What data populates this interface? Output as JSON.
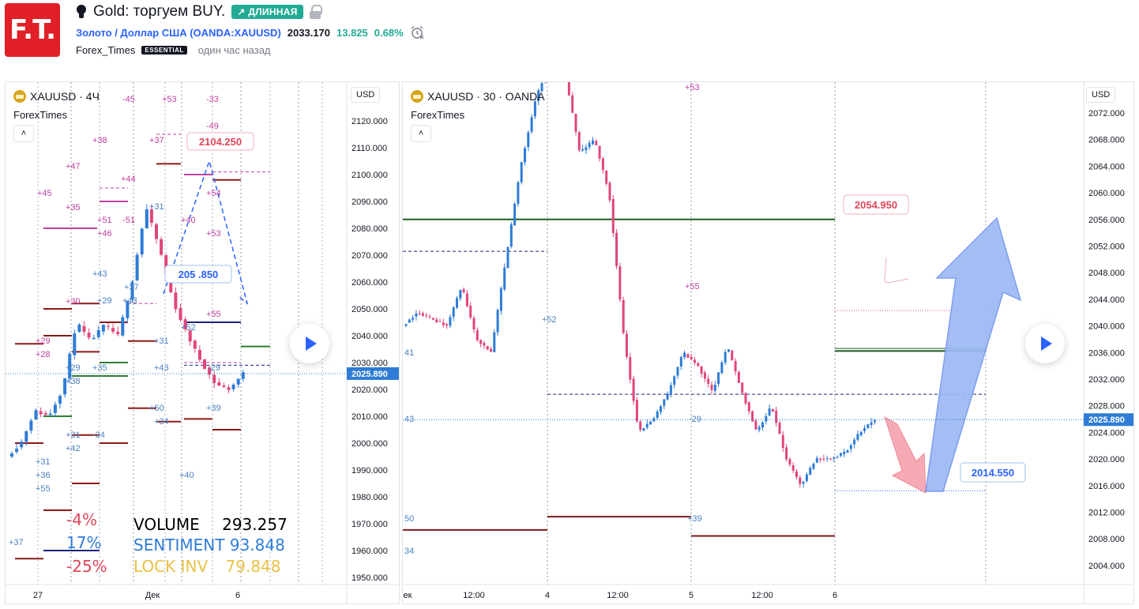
{
  "header": {
    "logo_text": "F.T.",
    "idea_title": "Gold: торгуем BUY.",
    "direction_badge": "↗ ДЛИННАЯ",
    "symbol_link": "Золото / Доллар США (OANDA:XAUUSD)",
    "price": "2033.170",
    "change": "13.825",
    "change_pct": "0.68%",
    "author": "Forex_Times",
    "author_badge": "ESSENTIAL",
    "time_ago": "один час назад"
  },
  "colors": {
    "bull": "#2e7cd6",
    "bear": "#e0457b",
    "accent": "#2962ff",
    "green_badge": "#22ab94",
    "logo_red": "#e01f26"
  },
  "left_chart": {
    "title": "XAUUSD · 4Ч",
    "indicator": "ForexTimes",
    "collapse": "˄",
    "currency": "USD",
    "y_ticks": [
      "2120.000",
      "2110.000",
      "2100.000",
      "2090.000",
      "2080.000",
      "2070.000",
      "2060.000",
      "2050.000",
      "2040.000",
      "2030.000",
      "2020.000",
      "2010.000",
      "2000.000",
      "1990.000",
      "1980.000",
      "1970.000",
      "1960.000",
      "1950.000"
    ],
    "x_ticks": [
      "27",
      "Дек",
      "6"
    ],
    "last_price": "2025.890",
    "callout_red": "2104.250",
    "callout_blue": "205 .850",
    "volume_label": "VOLUME",
    "volume_value": "293.257",
    "sentiment_label": "SENTIMENT",
    "sentiment_value": "93.848",
    "lock_label": "LOCK INV",
    "lock_value": "79.848",
    "pct_red_1": "-4%",
    "pct_blue": "17%",
    "pct_red_2": "-25%",
    "labels_pink": [
      "+47",
      "+45",
      "+35",
      "+38",
      "+37",
      "-45",
      "+53",
      "-33",
      "-49",
      "+44",
      "-51",
      "+54",
      "+53",
      "+29",
      "+28",
      "+30",
      "+55",
      "+40",
      "+46",
      "+51"
    ],
    "labels_blue": [
      "+31",
      "+43",
      "+29",
      "+43",
      "+37",
      "+52",
      "+31",
      "+43",
      "+35",
      "+29",
      "+38",
      "+31",
      "+42",
      "-34",
      "+50",
      "+34",
      "+39",
      "+31",
      "+36",
      "+55",
      "+40",
      "+37",
      "-29"
    ]
  },
  "right_chart": {
    "title": "XAUUSD · 30 · OANDA",
    "indicator": "ForexTimes",
    "collapse": "˄",
    "currency": "USD",
    "y_ticks": [
      "2072.000",
      "2068.000",
      "2064.000",
      "2060.000",
      "2056.000",
      "2052.000",
      "2048.000",
      "2044.000",
      "2040.000",
      "2036.000",
      "2032.000",
      "2028.000",
      "2024.000",
      "2020.000",
      "2016.000",
      "2012.000",
      "2008.000",
      "2004.000"
    ],
    "x_ticks": [
      "ек",
      "12:00",
      "4",
      "12:00",
      "5",
      "12:00",
      "6"
    ],
    "last_price": "2025.890",
    "callout_red": "2054.950",
    "callout_blue": "2014.550",
    "labels_pink": [
      "+53",
      "+55"
    ],
    "labels_blue": [
      "+52",
      "41",
      "43",
      "-29",
      "50",
      "+39",
      "34"
    ]
  }
}
